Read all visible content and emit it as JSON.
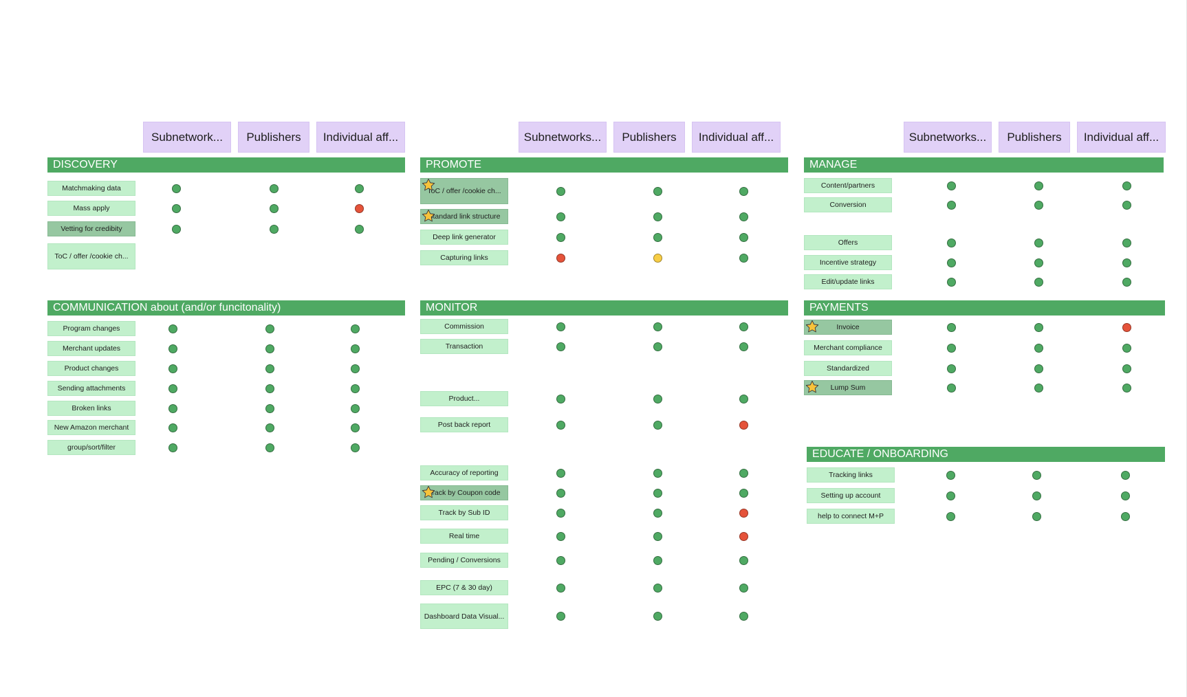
{
  "colors": {
    "header_bg": "#e1d1f7",
    "section_bar": "#4fa963",
    "sticky": "#c2f0cc",
    "sticky_highlight": "#96c7a1",
    "status_green": "#4fa963",
    "status_red": "#e5533a",
    "status_yellow": "#f7cd45"
  },
  "column_headers": [
    {
      "labels": [
        "Subnetwork...",
        "Publishers",
        "Individual aff..."
      ]
    },
    {
      "labels": [
        "Subnetworks...",
        "Publishers",
        "Individual aff..."
      ]
    },
    {
      "labels": [
        "Subnetworks...",
        "Publishers",
        "Individual aff..."
      ]
    }
  ],
  "sections": [
    {
      "title": "DISCOVERY",
      "items": [
        {
          "label": "Matchmaking data",
          "starred": false,
          "highlight": false,
          "status": [
            "green",
            "green",
            "green"
          ]
        },
        {
          "label": "Mass apply",
          "starred": false,
          "highlight": false,
          "status": [
            "green",
            "green",
            "red"
          ]
        },
        {
          "label": "Vetting for credibity",
          "starred": false,
          "highlight": true,
          "status": [
            "green",
            "green",
            "green"
          ]
        },
        {
          "label": "ToC / offer /cookie ch...",
          "starred": false,
          "highlight": false,
          "status": []
        }
      ]
    },
    {
      "title": "COMMUNICATION about (and/or funcitonality)",
      "items": [
        {
          "label": "Program changes",
          "starred": false,
          "highlight": false,
          "status": [
            "green",
            "green",
            "green"
          ]
        },
        {
          "label": "Merchant updates",
          "starred": false,
          "highlight": false,
          "status": [
            "green",
            "green",
            "green"
          ]
        },
        {
          "label": "Product changes",
          "starred": false,
          "highlight": false,
          "status": [
            "green",
            "green",
            "green"
          ]
        },
        {
          "label": "Sending attachments",
          "starred": false,
          "highlight": false,
          "status": [
            "green",
            "green",
            "green"
          ]
        },
        {
          "label": "Broken links",
          "starred": false,
          "highlight": false,
          "status": [
            "green",
            "green",
            "green"
          ]
        },
        {
          "label": "New Amazon merchant",
          "starred": false,
          "highlight": false,
          "status": [
            "green",
            "green",
            "green"
          ]
        },
        {
          "label": "group/sort/filter",
          "starred": false,
          "highlight": false,
          "status": [
            "green",
            "green",
            "green"
          ]
        }
      ]
    },
    {
      "title": "PROMOTE",
      "items": [
        {
          "label": "ToC / offer /cookie ch...",
          "starred": true,
          "highlight": true,
          "status": [
            "green",
            "green",
            "green"
          ]
        },
        {
          "label": "Standard link structure",
          "starred": true,
          "highlight": true,
          "status": [
            "green",
            "green",
            "green"
          ]
        },
        {
          "label": "Deep link generator",
          "starred": false,
          "highlight": false,
          "status": [
            "green",
            "green",
            "green"
          ]
        },
        {
          "label": "Capturing links",
          "starred": false,
          "highlight": false,
          "status": [
            "red",
            "yellow",
            "green"
          ]
        }
      ]
    },
    {
      "title": "MONITOR",
      "items": [
        {
          "label": "Commission",
          "starred": false,
          "highlight": false,
          "status": [
            "green",
            "green",
            "green"
          ]
        },
        {
          "label": "Transaction",
          "starred": false,
          "highlight": false,
          "status": [
            "green",
            "green",
            "green"
          ]
        },
        {
          "label": "Product...",
          "starred": false,
          "highlight": false,
          "status": [
            "green",
            "green",
            "green"
          ]
        },
        {
          "label": "Post back report",
          "starred": false,
          "highlight": false,
          "status": [
            "green",
            "green",
            "red"
          ]
        },
        {
          "label": "Accuracy of reporting",
          "starred": false,
          "highlight": false,
          "status": [
            "green",
            "green",
            "green"
          ]
        },
        {
          "label": "Track by Coupon code",
          "starred": true,
          "highlight": true,
          "status": [
            "green",
            "green",
            "green"
          ]
        },
        {
          "label": "Track by Sub ID",
          "starred": false,
          "highlight": false,
          "status": [
            "green",
            "green",
            "red"
          ]
        },
        {
          "label": "Real time",
          "starred": false,
          "highlight": false,
          "status": [
            "green",
            "green",
            "red"
          ]
        },
        {
          "label": "Pending / Conversions",
          "starred": false,
          "highlight": false,
          "status": [
            "green",
            "green",
            "green"
          ]
        },
        {
          "label": "EPC (7 & 30 day)",
          "starred": false,
          "highlight": false,
          "status": [
            "green",
            "green",
            "green"
          ]
        },
        {
          "label": "Dashboard Data Visual...",
          "starred": false,
          "highlight": false,
          "status": [
            "green",
            "green",
            "green"
          ]
        }
      ]
    },
    {
      "title": "MANAGE",
      "items": [
        {
          "label": "Content/partners",
          "starred": false,
          "highlight": false,
          "status": [
            "green",
            "green",
            "green"
          ]
        },
        {
          "label": "Conversion",
          "starred": false,
          "highlight": false,
          "status": [
            "green",
            "green",
            "green"
          ]
        },
        {
          "label": "Offers",
          "starred": false,
          "highlight": false,
          "status": [
            "green",
            "green",
            "green"
          ]
        },
        {
          "label": "Incentive strategy",
          "starred": false,
          "highlight": false,
          "status": [
            "green",
            "green",
            "green"
          ]
        },
        {
          "label": "Edit/update links",
          "starred": false,
          "highlight": false,
          "status": [
            "green",
            "green",
            "green"
          ]
        }
      ]
    },
    {
      "title": "PAYMENTS",
      "items": [
        {
          "label": "Invoice",
          "starred": true,
          "highlight": true,
          "status": [
            "green",
            "green",
            "red"
          ]
        },
        {
          "label": "Merchant compliance",
          "starred": false,
          "highlight": false,
          "status": [
            "green",
            "green",
            "green"
          ]
        },
        {
          "label": "Standardized",
          "starred": false,
          "highlight": false,
          "status": [
            "green",
            "green",
            "green"
          ]
        },
        {
          "label": "Lump Sum",
          "starred": true,
          "highlight": true,
          "status": [
            "green",
            "green",
            "green"
          ]
        }
      ]
    },
    {
      "title": "EDUCATE / ONBOARDING",
      "items": [
        {
          "label": "Tracking links",
          "starred": false,
          "highlight": false,
          "status": [
            "green",
            "green",
            "green"
          ]
        },
        {
          "label": "Setting up account",
          "starred": false,
          "highlight": false,
          "status": [
            "green",
            "green",
            "green"
          ]
        },
        {
          "label": "help to connect M+P",
          "starred": false,
          "highlight": false,
          "status": [
            "green",
            "green",
            "green"
          ]
        }
      ]
    }
  ]
}
